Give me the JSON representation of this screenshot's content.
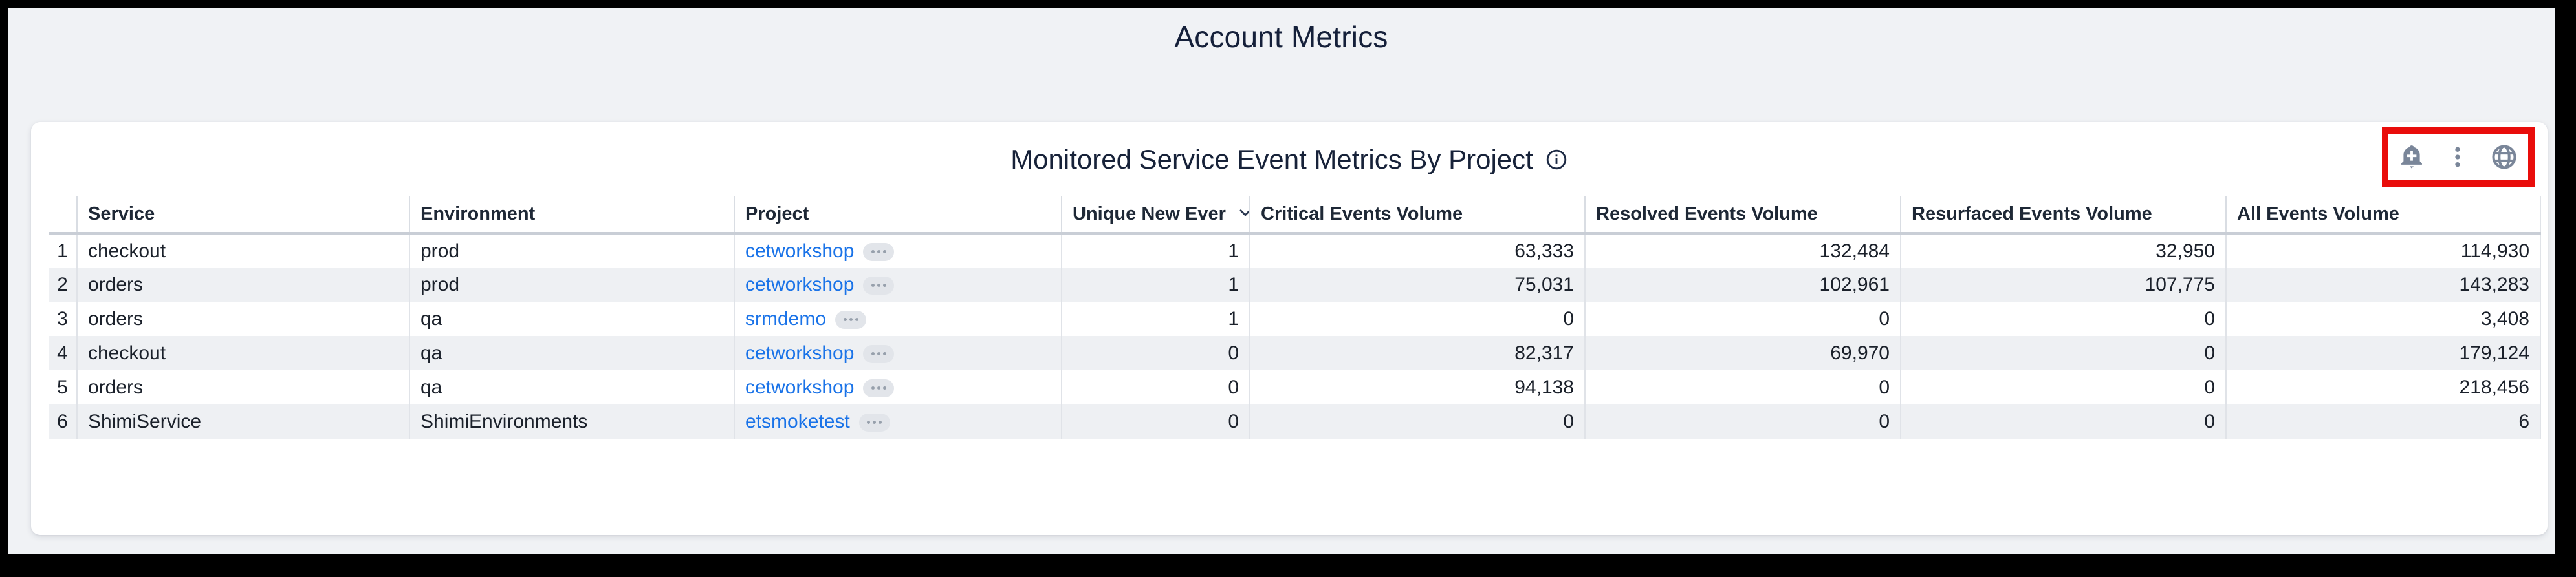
{
  "page": {
    "title": "Account Metrics"
  },
  "panel": {
    "title": "Monitored Service Event Metrics By Project",
    "toolbar": {
      "icons": [
        "add-alert",
        "kebab-menu",
        "globe"
      ],
      "annotation_color": "#e90d0b",
      "icon_color": "#7a8699"
    }
  },
  "table": {
    "columns": [
      {
        "label": "Service",
        "align": "left"
      },
      {
        "label": "Environment",
        "align": "left"
      },
      {
        "label": "Project",
        "align": "left",
        "link": true
      },
      {
        "label": "Unique New Ever",
        "align": "right",
        "sort": "desc"
      },
      {
        "label": "Critical Events Volume",
        "align": "right"
      },
      {
        "label": "Resolved Events Volume",
        "align": "right"
      },
      {
        "label": "Resurfaced Events Volume",
        "align": "right"
      },
      {
        "label": "All Events Volume",
        "align": "right"
      }
    ],
    "rows": [
      {
        "num": "1",
        "cells": [
          "checkout",
          "prod",
          "cetworkshop",
          "1",
          "63,333",
          "132,484",
          "32,950",
          "114,930"
        ]
      },
      {
        "num": "2",
        "cells": [
          "orders",
          "prod",
          "cetworkshop",
          "1",
          "75,031",
          "102,961",
          "107,775",
          "143,283"
        ]
      },
      {
        "num": "3",
        "cells": [
          "orders",
          "qa",
          "srmdemo",
          "1",
          "0",
          "0",
          "0",
          "3,408"
        ]
      },
      {
        "num": "4",
        "cells": [
          "checkout",
          "qa",
          "cetworkshop",
          "0",
          "82,317",
          "69,970",
          "0",
          "179,124"
        ]
      },
      {
        "num": "5",
        "cells": [
          "orders",
          "qa",
          "cetworkshop",
          "0",
          "94,138",
          "0",
          "0",
          "218,456"
        ]
      },
      {
        "num": "6",
        "cells": [
          "ShimiService",
          "ShimiEnvironments",
          "etsmoketest",
          "0",
          "0",
          "0",
          "0",
          "6"
        ]
      }
    ]
  },
  "colors": {
    "link": "#1a73e8",
    "page_background": "#f0f2f5",
    "title_text": "#15203a",
    "stripe": "#eef0f3"
  }
}
